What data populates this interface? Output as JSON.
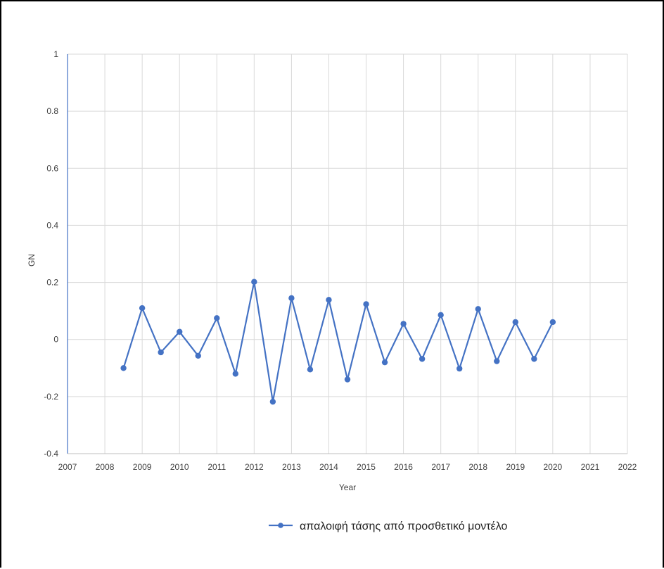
{
  "chart_data": {
    "type": "line",
    "xlabel": "Year",
    "ylabel": "GN",
    "xlim": [
      2007,
      2022
    ],
    "ylim": [
      -0.4,
      1
    ],
    "x_ticks": [
      "2007",
      "2008",
      "2009",
      "2010",
      "2011",
      "2012",
      "2013",
      "2014",
      "2015",
      "2016",
      "2017",
      "2018",
      "2019",
      "2020",
      "2021",
      "2022"
    ],
    "y_ticks": [
      "-0.4",
      "-0.2",
      "0",
      "0.2",
      "0.4",
      "0.6",
      "0.8",
      "1"
    ],
    "grid": "vertical-and-horizontal",
    "legend_position": "bottom",
    "series": [
      {
        "name": "απαλοιφή τάσης από προσθετικό μοντέλο",
        "color": "#4472C4",
        "marker": "circle",
        "points": [
          {
            "x": 2008.5,
            "y": -0.1
          },
          {
            "x": 2009.0,
            "y": 0.11
          },
          {
            "x": 2009.5,
            "y": -0.045
          },
          {
            "x": 2010.0,
            "y": 0.027
          },
          {
            "x": 2010.5,
            "y": -0.057
          },
          {
            "x": 2011.0,
            "y": 0.075
          },
          {
            "x": 2011.5,
            "y": -0.12
          },
          {
            "x": 2012.0,
            "y": 0.202
          },
          {
            "x": 2012.5,
            "y": -0.218
          },
          {
            "x": 2013.0,
            "y": 0.145
          },
          {
            "x": 2013.5,
            "y": -0.105
          },
          {
            "x": 2014.0,
            "y": 0.139
          },
          {
            "x": 2014.5,
            "y": -0.14
          },
          {
            "x": 2015.0,
            "y": 0.124
          },
          {
            "x": 2015.5,
            "y": -0.08
          },
          {
            "x": 2016.0,
            "y": 0.055
          },
          {
            "x": 2016.5,
            "y": -0.068
          },
          {
            "x": 2017.0,
            "y": 0.086
          },
          {
            "x": 2017.5,
            "y": -0.102
          },
          {
            "x": 2018.0,
            "y": 0.107
          },
          {
            "x": 2018.5,
            "y": -0.076
          },
          {
            "x": 2019.0,
            "y": 0.061
          },
          {
            "x": 2019.5,
            "y": -0.068
          },
          {
            "x": 2020.0,
            "y": 0.061
          }
        ]
      }
    ]
  }
}
